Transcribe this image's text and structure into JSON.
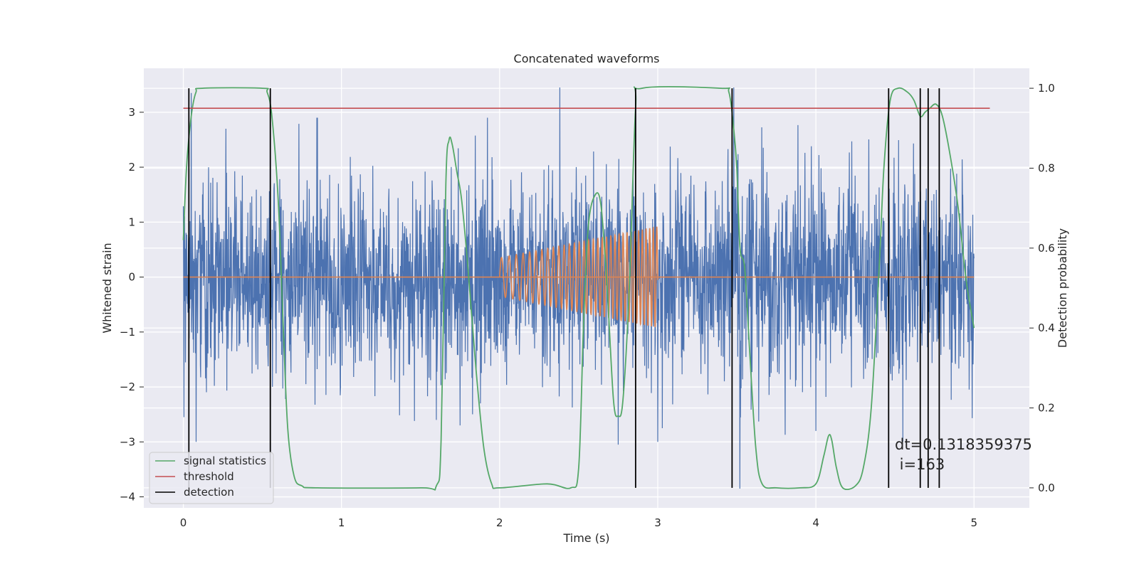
{
  "chart_data": {
    "type": "line",
    "title": "Concatenated waveforms",
    "xlabel": "Time (s)",
    "ylabel_left": "Whitened strain",
    "ylabel_right": "Detection probability",
    "xlim": [
      -0.25,
      5.35
    ],
    "ylim_left": [
      -4.2,
      3.8
    ],
    "ylim_right": [
      -0.05,
      1.05
    ],
    "x_ticks": [
      0,
      1,
      2,
      3,
      4,
      5
    ],
    "y_left_ticks": [
      -4,
      -3,
      -2,
      -1,
      0,
      1,
      2,
      3
    ],
    "y_right_ticks": [
      0.0,
      0.2,
      0.4,
      0.6,
      0.8,
      1.0
    ],
    "grid": true,
    "legend_position": "lower-left",
    "series": [
      {
        "name": "",
        "color": "#4c72b0",
        "kind": "noise",
        "x_range": [
          0,
          5
        ],
        "std": 0.9,
        "spikes": [
          {
            "x": 0.05,
            "y": 3.35
          },
          {
            "x": 2.38,
            "y": 3.45
          },
          {
            "x": 3.48,
            "y": 3.45
          },
          {
            "x": 3.52,
            "y": -3.85
          },
          {
            "x": 0.55,
            "y": 3.0
          },
          {
            "x": 0.08,
            "y": -3.0
          },
          {
            "x": 2.75,
            "y": -3.05
          },
          {
            "x": 3.0,
            "y": -3.0
          },
          {
            "x": 4.0,
            "y": -2.8
          },
          {
            "x": 1.6,
            "y": -2.6
          },
          {
            "x": 4.55,
            "y": -3.0
          },
          {
            "x": 1.75,
            "y": -2.7
          }
        ]
      },
      {
        "name": "",
        "color": "#dd8452",
        "kind": "chirp",
        "flat": [
          [
            0,
            0
          ],
          [
            2,
            0
          ],
          [
            3,
            0
          ],
          [
            5,
            0
          ]
        ],
        "chirp_x_range": [
          2.0,
          3.0
        ],
        "amplitude_range": [
          0.35,
          0.92
        ],
        "freq_range_hz": [
          20,
          45
        ]
      },
      {
        "name": "signal statistics",
        "color": "#55a868",
        "axis": "right",
        "points": [
          [
            0.0,
            0.62
          ],
          [
            0.02,
            0.8
          ],
          [
            0.05,
            0.93
          ],
          [
            0.08,
            0.99
          ],
          [
            0.12,
            1.0
          ],
          [
            0.5,
            1.0
          ],
          [
            0.53,
            0.99
          ],
          [
            0.56,
            0.93
          ],
          [
            0.6,
            0.72
          ],
          [
            0.63,
            0.42
          ],
          [
            0.66,
            0.15
          ],
          [
            0.7,
            0.03
          ],
          [
            0.75,
            0.005
          ],
          [
            0.85,
            0.0
          ],
          [
            1.5,
            0.0
          ],
          [
            1.6,
            0.005
          ],
          [
            1.63,
            0.12
          ],
          [
            1.66,
            0.76
          ],
          [
            1.68,
            0.87
          ],
          [
            1.7,
            0.86
          ],
          [
            1.73,
            0.79
          ],
          [
            1.76,
            0.72
          ],
          [
            1.8,
            0.55
          ],
          [
            1.85,
            0.3
          ],
          [
            1.9,
            0.1
          ],
          [
            1.95,
            0.01
          ],
          [
            2.0,
            0.0
          ],
          [
            2.3,
            0.01
          ],
          [
            2.45,
            0.0
          ],
          [
            2.5,
            0.05
          ],
          [
            2.53,
            0.4
          ],
          [
            2.56,
            0.65
          ],
          [
            2.6,
            0.73
          ],
          [
            2.64,
            0.71
          ],
          [
            2.68,
            0.5
          ],
          [
            2.72,
            0.22
          ],
          [
            2.75,
            0.18
          ],
          [
            2.78,
            0.22
          ],
          [
            2.82,
            0.5
          ],
          [
            2.86,
            0.95
          ],
          [
            2.9,
            1.0
          ],
          [
            3.4,
            1.0
          ],
          [
            3.45,
            0.99
          ],
          [
            3.48,
            0.9
          ],
          [
            3.5,
            0.8
          ],
          [
            3.52,
            0.6
          ],
          [
            3.55,
            0.55
          ],
          [
            3.58,
            0.35
          ],
          [
            3.62,
            0.1
          ],
          [
            3.66,
            0.01
          ],
          [
            3.75,
            0.0
          ],
          [
            3.9,
            0.0
          ],
          [
            4.0,
            0.01
          ],
          [
            4.05,
            0.08
          ],
          [
            4.08,
            0.13
          ],
          [
            4.1,
            0.12
          ],
          [
            4.13,
            0.05
          ],
          [
            4.17,
            0.0
          ],
          [
            4.25,
            0.005
          ],
          [
            4.3,
            0.05
          ],
          [
            4.35,
            0.2
          ],
          [
            4.4,
            0.55
          ],
          [
            4.43,
            0.8
          ],
          [
            4.47,
            0.97
          ],
          [
            4.52,
            1.0
          ],
          [
            4.58,
            0.99
          ],
          [
            4.62,
            0.97
          ],
          [
            4.66,
            0.93
          ],
          [
            4.69,
            0.94
          ],
          [
            4.72,
            0.95
          ],
          [
            4.76,
            0.96
          ],
          [
            4.8,
            0.93
          ],
          [
            4.85,
            0.83
          ],
          [
            4.9,
            0.7
          ],
          [
            4.95,
            0.52
          ],
          [
            5.0,
            0.4
          ]
        ]
      },
      {
        "name": "threshold",
        "color": "#c44e52",
        "axis": "right",
        "points": [
          [
            0.0,
            0.95
          ],
          [
            5.1,
            0.95
          ]
        ]
      },
      {
        "name": "detection",
        "color": "#000000",
        "axis": "right",
        "kind": "vlines",
        "x": [
          0.035,
          0.55,
          2.86,
          3.47,
          4.46,
          4.66,
          4.71,
          4.78
        ],
        "y_range": [
          0.0,
          1.0
        ]
      }
    ],
    "annotations": [
      "dt=0.1318359375",
      " i=163"
    ]
  }
}
